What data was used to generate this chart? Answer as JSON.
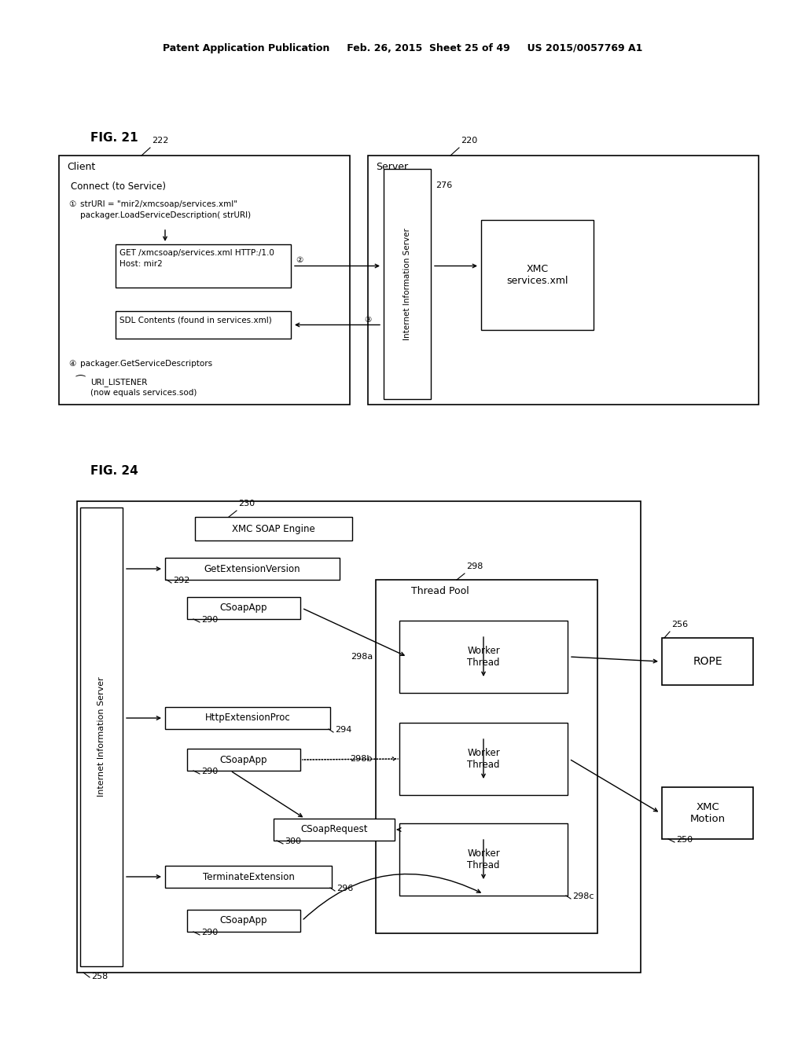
{
  "bg_color": "#ffffff",
  "header_text": "Patent Application Publication     Feb. 26, 2015  Sheet 25 of 49     US 2015/0057769 A1",
  "fig21_label": "FIG. 21",
  "fig24_label": "FIG. 24"
}
